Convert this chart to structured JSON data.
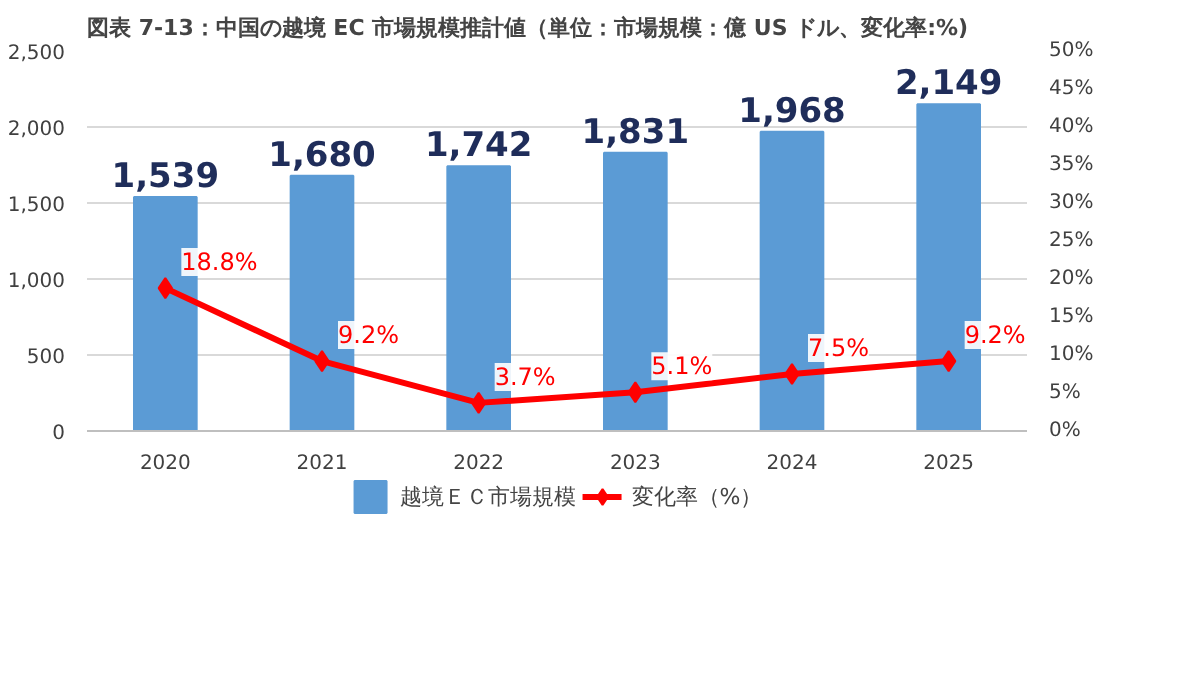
{
  "chart_data": {
    "type": "bar",
    "title": "図表 7-13：中国の越境 EC 市場規模推計値（単位：市場規模：億 US ドル、変化率:%)",
    "categories": [
      "2020",
      "2021",
      "2022",
      "2023",
      "2024",
      "2025"
    ],
    "series": [
      {
        "name": "越境ＥＣ市場規模",
        "color": "#5b9bd5",
        "values": [
          1539,
          1680,
          1742,
          1831,
          1968,
          2149
        ],
        "value_labels": [
          "1,539",
          "1,680",
          "1,742",
          "1,831",
          "1,968",
          "2,149"
        ]
      },
      {
        "name": "変化率（%）",
        "type": "line",
        "axis": "y2",
        "color": "#ff0000",
        "marker": "diamond",
        "values": [
          18.8,
          9.2,
          3.7,
          5.1,
          7.5,
          9.2
        ],
        "value_labels": [
          "18.8%",
          "9.2%",
          "3.7%",
          "5.1%",
          "7.5%",
          "9.2%"
        ]
      }
    ],
    "ylim": [
      0,
      2500
    ],
    "yticks": [
      {
        "value": 0,
        "label": "0"
      },
      {
        "value": 500,
        "label": "500"
      },
      {
        "value": 1000,
        "label": "1,000"
      },
      {
        "value": 1500,
        "label": "1,500"
      },
      {
        "value": 2000,
        "label": "2,000"
      },
      {
        "value": 2500,
        "label": "2,500"
      }
    ],
    "y2lim": [
      0,
      50
    ],
    "y2ticks": [
      {
        "value": 0,
        "label": "0%"
      },
      {
        "value": 5,
        "label": "5%"
      },
      {
        "value": 10,
        "label": "10%"
      },
      {
        "value": 15,
        "label": "15%"
      },
      {
        "value": 20,
        "label": "20%"
      },
      {
        "value": 25,
        "label": "25%"
      },
      {
        "value": 30,
        "label": "30%"
      },
      {
        "value": 35,
        "label": "35%"
      },
      {
        "value": 40,
        "label": "40%"
      },
      {
        "value": 45,
        "label": "45%"
      },
      {
        "value": 50,
        "label": "50%"
      }
    ],
    "grid": "y",
    "legend": "bottom"
  }
}
